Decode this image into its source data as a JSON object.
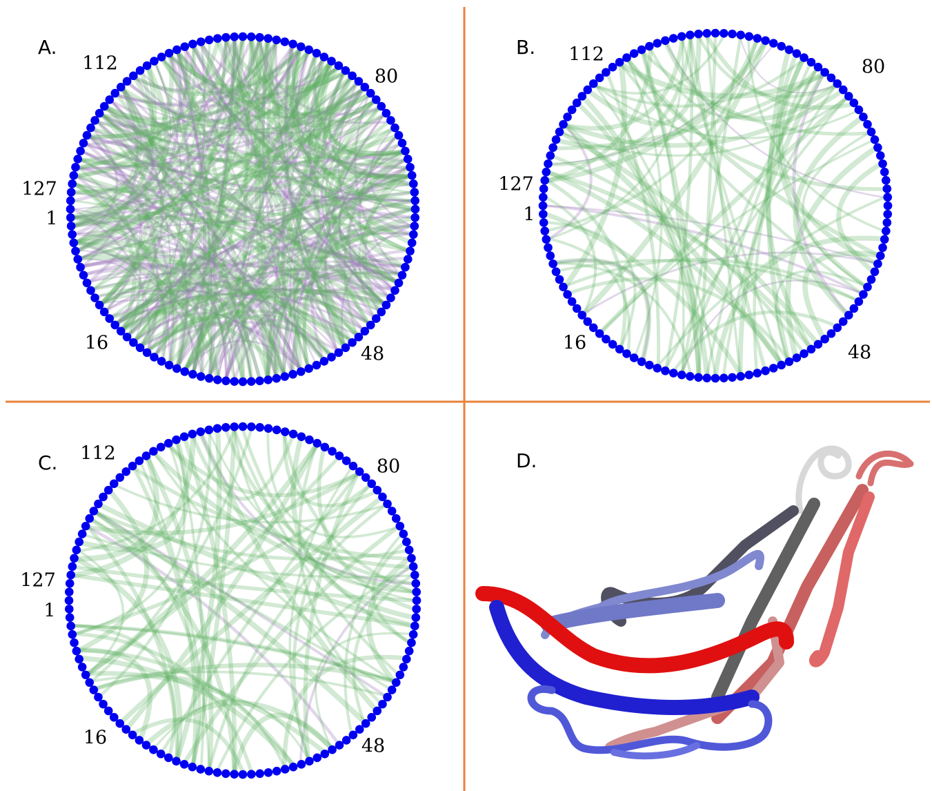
{
  "panels": [
    {
      "label": "A.",
      "residue_labels": [
        "112",
        "80",
        "127",
        "1",
        "16",
        "48"
      ]
    },
    {
      "label": "B.",
      "residue_labels": [
        "112",
        "80",
        "127",
        "1",
        "16",
        "48"
      ]
    },
    {
      "label": "C.",
      "residue_labels": [
        "112",
        "80",
        "127",
        "1",
        "16",
        "48"
      ]
    },
    {
      "label": "D."
    }
  ]
}
